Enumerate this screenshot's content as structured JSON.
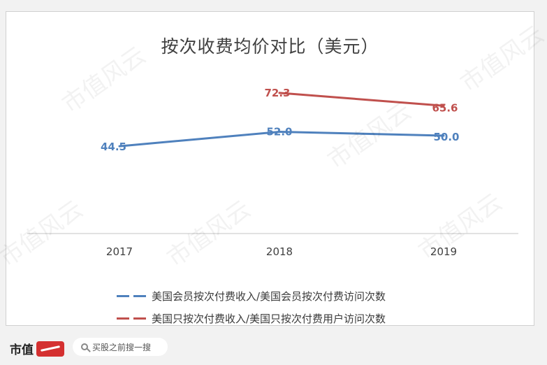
{
  "chart_data": {
    "type": "line",
    "title": "按次收费均价对比（美元）",
    "categories": [
      "2017",
      "2018",
      "2019"
    ],
    "ylim": [
      0,
      100
    ],
    "grid": false,
    "legend_placement": "bottom",
    "series": [
      {
        "name": "美国会员按次付费收入/美国会员按次付费访问次数",
        "color": "#4f81bd",
        "values": [
          44.5,
          52.0,
          50.0
        ],
        "labels": [
          "44.5",
          "52.0",
          "50.0"
        ]
      },
      {
        "name": "美国只按次付费收入/美国只按次付费用户访问次数",
        "color": "#c0504d",
        "values": [
          null,
          72.3,
          65.6
        ],
        "labels": [
          "",
          "72.3",
          "65.6"
        ]
      }
    ]
  },
  "watermark_text": "市值风云",
  "footer": {
    "brand": "市值",
    "search_placeholder": "买股之前搜一搜"
  }
}
